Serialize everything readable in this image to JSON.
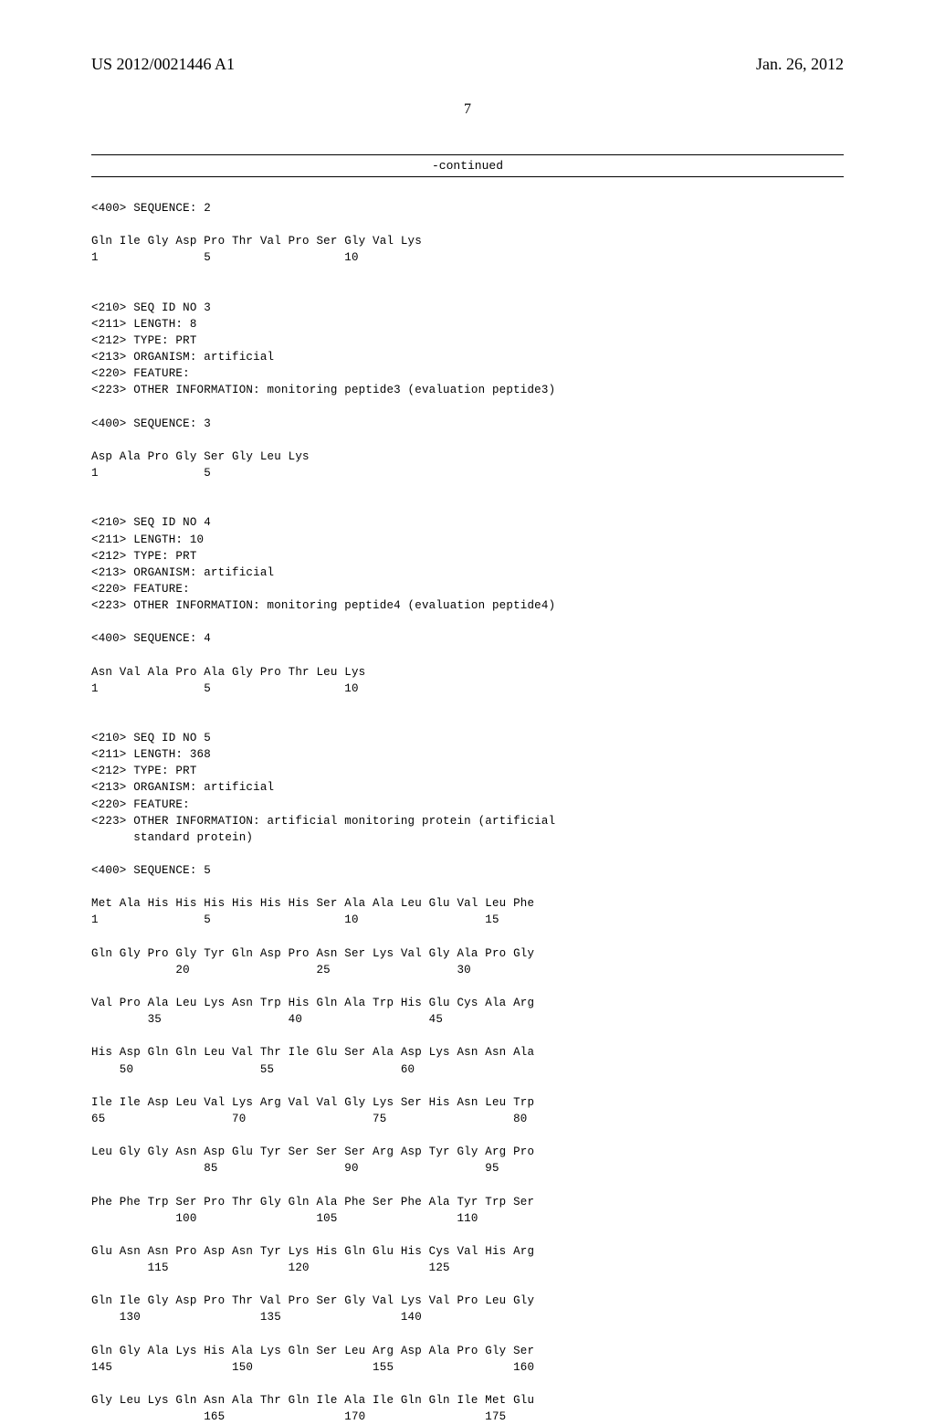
{
  "header": {
    "publication_number": "US 2012/0021446 A1",
    "publication_date": "Jan. 26, 2012",
    "page_number": "7"
  },
  "continued_label": "-continued",
  "sequence_listing_text": "<400> SEQUENCE: 2\n\nGln Ile Gly Asp Pro Thr Val Pro Ser Gly Val Lys\n1               5                   10\n\n\n<210> SEQ ID NO 3\n<211> LENGTH: 8\n<212> TYPE: PRT\n<213> ORGANISM: artificial\n<220> FEATURE:\n<223> OTHER INFORMATION: monitoring peptide3 (evaluation peptide3)\n\n<400> SEQUENCE: 3\n\nAsp Ala Pro Gly Ser Gly Leu Lys\n1               5\n\n\n<210> SEQ ID NO 4\n<211> LENGTH: 10\n<212> TYPE: PRT\n<213> ORGANISM: artificial\n<220> FEATURE:\n<223> OTHER INFORMATION: monitoring peptide4 (evaluation peptide4)\n\n<400> SEQUENCE: 4\n\nAsn Val Ala Pro Ala Gly Pro Thr Leu Lys\n1               5                   10\n\n\n<210> SEQ ID NO 5\n<211> LENGTH: 368\n<212> TYPE: PRT\n<213> ORGANISM: artificial\n<220> FEATURE:\n<223> OTHER INFORMATION: artificial monitoring protein (artificial\n      standard protein)\n\n<400> SEQUENCE: 5\n\nMet Ala His His His His His His Ser Ala Ala Leu Glu Val Leu Phe\n1               5                   10                  15\n\nGln Gly Pro Gly Tyr Gln Asp Pro Asn Ser Lys Val Gly Ala Pro Gly\n            20                  25                  30\n\nVal Pro Ala Leu Lys Asn Trp His Gln Ala Trp His Glu Cys Ala Arg\n        35                  40                  45\n\nHis Asp Gln Gln Leu Val Thr Ile Glu Ser Ala Asp Lys Asn Asn Ala\n    50                  55                  60\n\nIle Ile Asp Leu Val Lys Arg Val Val Gly Lys Ser His Asn Leu Trp\n65                  70                  75                  80\n\nLeu Gly Gly Asn Asp Glu Tyr Ser Ser Ser Arg Asp Tyr Gly Arg Pro\n                85                  90                  95\n\nPhe Phe Trp Ser Pro Thr Gly Gln Ala Phe Ser Phe Ala Tyr Trp Ser\n            100                 105                 110\n\nGlu Asn Asn Pro Asp Asn Tyr Lys His Gln Glu His Cys Val His Arg\n        115                 120                 125\n\nGln Ile Gly Asp Pro Thr Val Pro Ser Gly Val Lys Val Pro Leu Gly\n    130                 135                 140\n\nGln Gly Ala Lys His Ala Lys Gln Ser Leu Arg Asp Ala Pro Gly Ser\n145                 150                 155                 160\n\nGly Leu Lys Gln Asn Ala Thr Gln Ile Ala Ile Gln Gln Ile Met Glu\n                165                 170                 175"
}
